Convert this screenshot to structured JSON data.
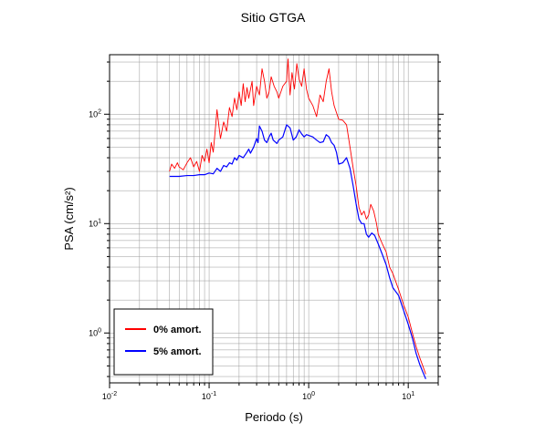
{
  "chart_data": {
    "type": "line",
    "title": "Sitio GTGA",
    "xlabel": "Periodo (s)",
    "ylabel": "PSA (cm/s²)",
    "xscale": "log",
    "yscale": "log",
    "xlim": [
      0.01,
      20
    ],
    "ylim": [
      0.35,
      350
    ],
    "x_ticks": [
      {
        "value": 0.01,
        "base": "10",
        "exp": "-2"
      },
      {
        "value": 0.1,
        "base": "10",
        "exp": "-1"
      },
      {
        "value": 1,
        "base": "10",
        "exp": "0"
      },
      {
        "value": 10,
        "base": "10",
        "exp": "1"
      }
    ],
    "y_ticks": [
      {
        "value": 1,
        "base": "10",
        "exp": "0"
      },
      {
        "value": 10,
        "base": "10",
        "exp": "1"
      },
      {
        "value": 100,
        "base": "10",
        "exp": "2"
      }
    ],
    "grid": true,
    "legend_position": "bottom-left",
    "series": [
      {
        "name": "0% amort.",
        "color": "#ff0000",
        "points": [
          [
            0.04,
            30
          ],
          [
            0.042,
            35
          ],
          [
            0.045,
            32
          ],
          [
            0.048,
            36
          ],
          [
            0.05,
            33
          ],
          [
            0.055,
            31
          ],
          [
            0.06,
            36
          ],
          [
            0.065,
            40
          ],
          [
            0.07,
            33
          ],
          [
            0.075,
            37
          ],
          [
            0.08,
            30
          ],
          [
            0.085,
            42
          ],
          [
            0.09,
            37
          ],
          [
            0.095,
            48
          ],
          [
            0.1,
            36
          ],
          [
            0.105,
            55
          ],
          [
            0.11,
            45
          ],
          [
            0.115,
            70
          ],
          [
            0.12,
            110
          ],
          [
            0.125,
            80
          ],
          [
            0.13,
            60
          ],
          [
            0.14,
            85
          ],
          [
            0.15,
            70
          ],
          [
            0.16,
            115
          ],
          [
            0.17,
            95
          ],
          [
            0.18,
            140
          ],
          [
            0.19,
            110
          ],
          [
            0.2,
            160
          ],
          [
            0.21,
            120
          ],
          [
            0.22,
            190
          ],
          [
            0.23,
            130
          ],
          [
            0.24,
            175
          ],
          [
            0.25,
            140
          ],
          [
            0.27,
            200
          ],
          [
            0.28,
            120
          ],
          [
            0.3,
            180
          ],
          [
            0.32,
            150
          ],
          [
            0.34,
            260
          ],
          [
            0.36,
            200
          ],
          [
            0.38,
            140
          ],
          [
            0.4,
            160
          ],
          [
            0.42,
            220
          ],
          [
            0.45,
            180
          ],
          [
            0.48,
            160
          ],
          [
            0.5,
            140
          ],
          [
            0.55,
            180
          ],
          [
            0.6,
            200
          ],
          [
            0.62,
            320
          ],
          [
            0.65,
            150
          ],
          [
            0.68,
            240
          ],
          [
            0.72,
            170
          ],
          [
            0.76,
            290
          ],
          [
            0.8,
            210
          ],
          [
            0.85,
            180
          ],
          [
            0.9,
            260
          ],
          [
            0.95,
            170
          ],
          [
            1.0,
            140
          ],
          [
            1.1,
            120
          ],
          [
            1.2,
            95
          ],
          [
            1.3,
            150
          ],
          [
            1.4,
            130
          ],
          [
            1.5,
            200
          ],
          [
            1.6,
            260
          ],
          [
            1.7,
            160
          ],
          [
            1.8,
            120
          ],
          [
            2.0,
            90
          ],
          [
            2.2,
            88
          ],
          [
            2.4,
            80
          ],
          [
            2.6,
            50
          ],
          [
            2.8,
            32
          ],
          [
            3.0,
            22
          ],
          [
            3.2,
            14
          ],
          [
            3.4,
            12
          ],
          [
            3.6,
            13
          ],
          [
            3.8,
            11
          ],
          [
            4.0,
            12
          ],
          [
            4.2,
            15
          ],
          [
            4.5,
            13
          ],
          [
            4.8,
            10
          ],
          [
            5.0,
            8
          ],
          [
            5.5,
            6.5
          ],
          [
            6.0,
            5.5
          ],
          [
            6.5,
            4.0
          ],
          [
            7.0,
            3.5
          ],
          [
            8.0,
            2.5
          ],
          [
            9.0,
            1.8
          ],
          [
            10.0,
            1.4
          ],
          [
            11.0,
            1.0
          ],
          [
            12.0,
            0.75
          ],
          [
            13.0,
            0.6
          ],
          [
            14.0,
            0.5
          ],
          [
            15.0,
            0.42
          ]
        ]
      },
      {
        "name": "5% amort.",
        "color": "#0000ff",
        "points": [
          [
            0.04,
            27
          ],
          [
            0.05,
            27
          ],
          [
            0.06,
            27.5
          ],
          [
            0.07,
            27.5
          ],
          [
            0.08,
            28
          ],
          [
            0.09,
            28
          ],
          [
            0.1,
            29
          ],
          [
            0.11,
            28.5
          ],
          [
            0.12,
            32
          ],
          [
            0.13,
            30
          ],
          [
            0.14,
            34
          ],
          [
            0.15,
            33
          ],
          [
            0.16,
            36
          ],
          [
            0.17,
            35
          ],
          [
            0.18,
            40
          ],
          [
            0.19,
            38
          ],
          [
            0.2,
            42
          ],
          [
            0.22,
            40
          ],
          [
            0.24,
            45
          ],
          [
            0.25,
            48
          ],
          [
            0.26,
            44
          ],
          [
            0.28,
            50
          ],
          [
            0.3,
            60
          ],
          [
            0.31,
            55
          ],
          [
            0.32,
            78
          ],
          [
            0.34,
            70
          ],
          [
            0.36,
            58
          ],
          [
            0.38,
            55
          ],
          [
            0.4,
            62
          ],
          [
            0.42,
            67
          ],
          [
            0.44,
            58
          ],
          [
            0.46,
            56
          ],
          [
            0.48,
            54
          ],
          [
            0.5,
            58
          ],
          [
            0.55,
            62
          ],
          [
            0.6,
            80
          ],
          [
            0.65,
            75
          ],
          [
            0.7,
            58
          ],
          [
            0.75,
            62
          ],
          [
            0.8,
            72
          ],
          [
            0.85,
            66
          ],
          [
            0.9,
            62
          ],
          [
            0.95,
            65
          ],
          [
            1.0,
            64
          ],
          [
            1.1,
            62
          ],
          [
            1.2,
            58
          ],
          [
            1.3,
            55
          ],
          [
            1.4,
            56
          ],
          [
            1.5,
            65
          ],
          [
            1.6,
            62
          ],
          [
            1.7,
            55
          ],
          [
            1.8,
            52
          ],
          [
            1.9,
            45
          ],
          [
            2.0,
            35
          ],
          [
            2.2,
            36
          ],
          [
            2.4,
            40
          ],
          [
            2.6,
            32
          ],
          [
            2.8,
            22
          ],
          [
            3.0,
            15
          ],
          [
            3.2,
            11
          ],
          [
            3.4,
            10
          ],
          [
            3.6,
            10
          ],
          [
            3.8,
            8
          ],
          [
            4.0,
            7.5
          ],
          [
            4.3,
            8.2
          ],
          [
            4.6,
            7.8
          ],
          [
            5.0,
            6.5
          ],
          [
            5.5,
            5.2
          ],
          [
            6.0,
            4.2
          ],
          [
            6.5,
            3.2
          ],
          [
            7.0,
            2.6
          ],
          [
            8.0,
            2.2
          ],
          [
            9.0,
            1.6
          ],
          [
            10.0,
            1.2
          ],
          [
            11.0,
            0.9
          ],
          [
            12.0,
            0.65
          ],
          [
            13.0,
            0.52
          ],
          [
            14.0,
            0.44
          ],
          [
            15.0,
            0.38
          ]
        ]
      }
    ]
  }
}
